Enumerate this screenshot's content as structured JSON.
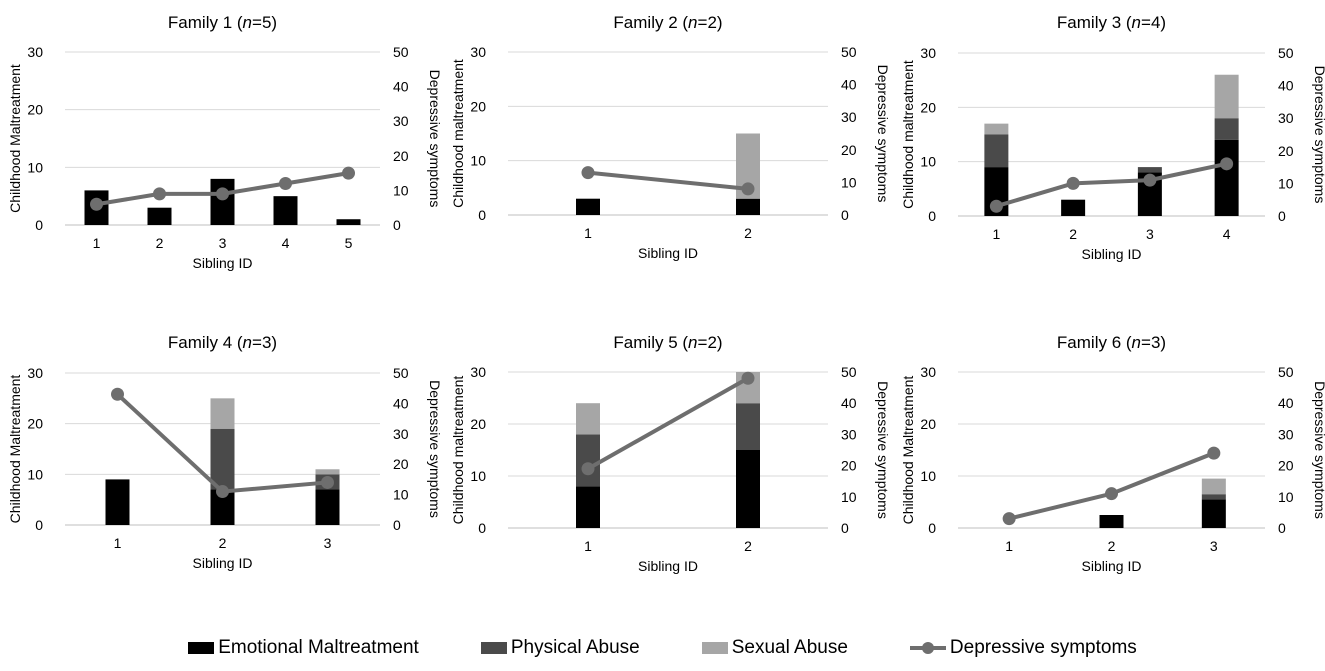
{
  "colors": {
    "emotional": "#000000",
    "physical": "#4a4a4a",
    "sexual": "#a6a6a6",
    "depressive": "#6e6e6e",
    "grid": "#d9d9d9"
  },
  "legend": {
    "emotional": "Emotional Maltreatment",
    "physical": "Physical Abuse",
    "sexual": "Sexual Abuse",
    "depressive": "Depressive symptoms"
  },
  "chart_data": [
    {
      "type": "bar",
      "title_prefix": "Family 1 (",
      "title_n": "n",
      "title_suffix": "=5)",
      "xlabel": "Sibling ID",
      "ylabel": "Childhood Maltreatment",
      "y2label": "Depressive symptoms",
      "categories": [
        "1",
        "2",
        "3",
        "4",
        "5"
      ],
      "ylim": [
        0,
        30
      ],
      "yticks": [
        "0",
        "10",
        "20",
        "30"
      ],
      "y2lim": [
        0,
        50
      ],
      "y2ticks": [
        "0",
        "10",
        "20",
        "30",
        "40",
        "50"
      ],
      "grid": true,
      "series": [
        {
          "name": "Emotional Maltreatment",
          "values": [
            6,
            3,
            8,
            5,
            1
          ]
        },
        {
          "name": "Physical Abuse",
          "values": [
            0,
            0,
            0,
            0,
            0
          ]
        },
        {
          "name": "Sexual Abuse",
          "values": [
            0,
            0,
            0,
            0,
            0
          ]
        }
      ],
      "line": {
        "name": "Depressive symptoms",
        "values": [
          6,
          9,
          9,
          12,
          15
        ]
      }
    },
    {
      "type": "bar",
      "title_prefix": "Family 2 (",
      "title_n": "n",
      "title_suffix": "=2)",
      "xlabel": "Sibling ID",
      "ylabel": "Childhood maltreatment",
      "y2label": "Depressive symptoms",
      "categories": [
        "1",
        "2"
      ],
      "ylim": [
        0,
        30
      ],
      "yticks": [
        "0",
        "10",
        "20",
        "30"
      ],
      "y2lim": [
        0,
        50
      ],
      "y2ticks": [
        "0",
        "10",
        "20",
        "30",
        "40",
        "50"
      ],
      "grid": true,
      "series": [
        {
          "name": "Emotional Maltreatment",
          "values": [
            3,
            3
          ]
        },
        {
          "name": "Physical Abuse",
          "values": [
            0,
            0
          ]
        },
        {
          "name": "Sexual Abuse",
          "values": [
            0,
            12
          ]
        }
      ],
      "line": {
        "name": "Depressive symptoms",
        "values": [
          13,
          8
        ]
      }
    },
    {
      "type": "bar",
      "title_prefix": "Family 3 (",
      "title_n": "n",
      "title_suffix": "=4)",
      "xlabel": "Sibling ID",
      "ylabel": "Childhood maltreatment",
      "y2label": "Depressive symptoms",
      "categories": [
        "1",
        "2",
        "3",
        "4"
      ],
      "ylim": [
        0,
        30
      ],
      "yticks": [
        "0",
        "10",
        "20",
        "30"
      ],
      "y2lim": [
        0,
        50
      ],
      "y2ticks": [
        "0",
        "10",
        "20",
        "30",
        "40",
        "50"
      ],
      "grid": true,
      "series": [
        {
          "name": "Emotional Maltreatment",
          "values": [
            9,
            3,
            8,
            14
          ]
        },
        {
          "name": "Physical Abuse",
          "values": [
            6,
            0,
            1,
            4
          ]
        },
        {
          "name": "Sexual Abuse",
          "values": [
            2,
            0,
            0,
            8
          ]
        }
      ],
      "line": {
        "name": "Depressive symptoms",
        "values": [
          3,
          10,
          11,
          16
        ]
      }
    },
    {
      "type": "bar",
      "title_prefix": "Family 4 (",
      "title_n": "n",
      "title_suffix": "=3)",
      "xlabel": "Sibling ID",
      "ylabel": "Childhood Maltreatment",
      "y2label": "Depressive symptoms",
      "categories": [
        "1",
        "2",
        "3"
      ],
      "ylim": [
        0,
        30
      ],
      "yticks": [
        "0",
        "10",
        "20",
        "30"
      ],
      "y2lim": [
        0,
        50
      ],
      "y2ticks": [
        "0",
        "10",
        "20",
        "30",
        "40",
        "50"
      ],
      "grid": true,
      "series": [
        {
          "name": "Emotional Maltreatment",
          "values": [
            9,
            7,
            7
          ]
        },
        {
          "name": "Physical Abuse",
          "values": [
            0,
            12,
            3
          ]
        },
        {
          "name": "Sexual Abuse",
          "values": [
            0,
            6,
            1
          ]
        }
      ],
      "line": {
        "name": "Depressive symptoms",
        "values": [
          43,
          11,
          14
        ]
      }
    },
    {
      "type": "bar",
      "title_prefix": "Family 5 (",
      "title_n": "n",
      "title_suffix": "=2)",
      "xlabel": "Sibling ID",
      "ylabel": "Childhood maltreatment",
      "y2label": "Depressive symptoms",
      "categories": [
        "1",
        "2"
      ],
      "ylim": [
        0,
        30
      ],
      "yticks": [
        "0",
        "10",
        "20",
        "30"
      ],
      "y2lim": [
        0,
        50
      ],
      "y2ticks": [
        "0",
        "10",
        "20",
        "30",
        "40",
        "50"
      ],
      "grid": true,
      "series": [
        {
          "name": "Emotional Maltreatment",
          "values": [
            8,
            15
          ]
        },
        {
          "name": "Physical Abuse",
          "values": [
            10,
            9
          ]
        },
        {
          "name": "Sexual Abuse",
          "values": [
            6,
            6
          ]
        }
      ],
      "line": {
        "name": "Depressive symptoms",
        "values": [
          19,
          48
        ]
      }
    },
    {
      "type": "bar",
      "title_prefix": "Family 6 (",
      "title_n": "n",
      "title_suffix": "=3)",
      "xlabel": "Sibling ID",
      "ylabel": "Childhood Maltreatment",
      "y2label": "Depressive symptoms",
      "categories": [
        "1",
        "2",
        "3"
      ],
      "ylim": [
        0,
        30
      ],
      "yticks": [
        "0",
        "10",
        "20",
        "30"
      ],
      "y2lim": [
        0,
        50
      ],
      "y2ticks": [
        "0",
        "10",
        "20",
        "30",
        "40",
        "50"
      ],
      "grid": true,
      "series": [
        {
          "name": "Emotional Maltreatment",
          "values": [
            0,
            2.5,
            5.5
          ]
        },
        {
          "name": "Physical Abuse",
          "values": [
            0,
            0,
            1
          ]
        },
        {
          "name": "Sexual Abuse",
          "values": [
            0,
            0,
            3
          ]
        }
      ],
      "line": {
        "name": "Depressive symptoms",
        "values": [
          3,
          11,
          24
        ]
      }
    }
  ]
}
